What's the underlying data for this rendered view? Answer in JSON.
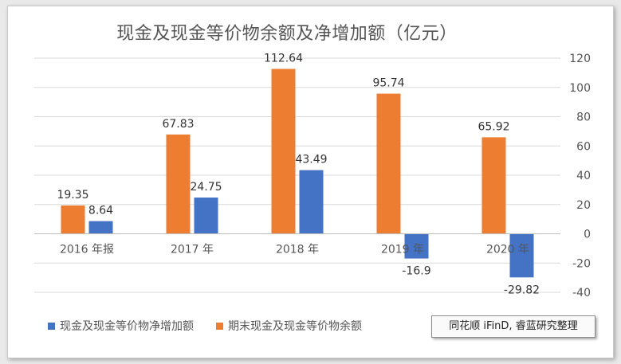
{
  "chart_data": {
    "type": "bar",
    "title": "现金及现金等价物余额及净增加额（亿元）",
    "categories": [
      "2016 年报",
      "2017 年",
      "2018 年",
      "2019 年",
      "2020 年"
    ],
    "series": [
      {
        "name": "期末现金及现金等价物余额",
        "color": "#ed7d31",
        "values": [
          19.35,
          67.83,
          112.64,
          95.74,
          65.92
        ],
        "labels": [
          "19.35",
          "67.83",
          "112.64",
          "95.74",
          "65.92"
        ]
      },
      {
        "name": "现金及现金等价物净增加额",
        "color": "#4472c4",
        "values": [
          8.64,
          24.75,
          43.49,
          -16.9,
          -29.82
        ],
        "labels": [
          "8.64",
          "24.75",
          "43.49",
          "-16.9",
          "-29.82"
        ]
      }
    ],
    "yaxis": {
      "position": "right",
      "ylim": [
        -40,
        120
      ],
      "ticks": [
        120,
        100,
        80,
        60,
        40,
        20,
        0,
        -20,
        -40
      ],
      "tick_labels": [
        "120",
        "100",
        "80",
        "60",
        "40",
        "20",
        "0",
        "-20",
        "-40"
      ]
    },
    "grid": true,
    "legend": {
      "placement": "bottom-left",
      "order": [
        "现金及现金等价物净增加额",
        "期末现金及现金等价物余额"
      ]
    }
  },
  "source_note": "同花顺 iFinD, 睿蓝研究整理",
  "colors": {
    "grid": "#d9d9d9",
    "text": "#555555",
    "background": "#ffffff"
  }
}
